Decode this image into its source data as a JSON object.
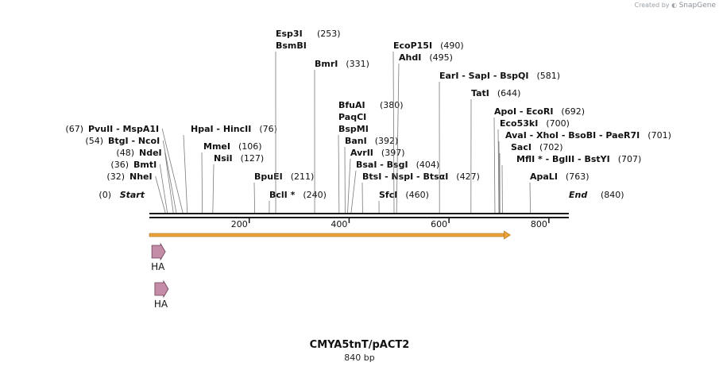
{
  "brand": {
    "prefix": "Created by",
    "name": "SnapGene"
  },
  "map": {
    "name": "CMYA5tnT/pACT2",
    "length_text": "840 bp",
    "total_bp": 840,
    "start_label": "Start",
    "start_pos": "(0)",
    "end_label": "End",
    "end_pos": "(840)"
  },
  "ticks": [
    {
      "bp": 200,
      "label": "200"
    },
    {
      "bp": 400,
      "label": "400"
    },
    {
      "bp": 600,
      "label": "600"
    },
    {
      "bp": 800,
      "label": "800"
    }
  ],
  "sites": [
    {
      "names": [
        "NheI"
      ],
      "pos": "(32)",
      "bp": 32,
      "side": "left"
    },
    {
      "names": [
        "BmtI"
      ],
      "pos": "(36)",
      "bp": 36,
      "side": "left"
    },
    {
      "names": [
        "NdeI"
      ],
      "pos": "(48)",
      "bp": 48,
      "side": "left"
    },
    {
      "names": [
        "BtgI",
        "NcoI"
      ],
      "pos": "(54)",
      "bp": 54,
      "side": "left"
    },
    {
      "names": [
        "PvuII",
        "MspA1I"
      ],
      "pos": "(67)",
      "bp": 67,
      "side": "left"
    },
    {
      "names": [
        "HpaI",
        "HincII"
      ],
      "pos": "(76)",
      "bp": 76,
      "side": "right"
    },
    {
      "names": [
        "MmeI"
      ],
      "pos": "(106)",
      "bp": 106,
      "side": "right"
    },
    {
      "names": [
        "NsiI"
      ],
      "pos": "(127)",
      "bp": 127,
      "side": "right"
    },
    {
      "names": [
        "BpuEI"
      ],
      "pos": "(211)",
      "bp": 211,
      "side": "right"
    },
    {
      "names": [
        "BclI *"
      ],
      "pos": "(240)",
      "bp": 240,
      "side": "right"
    },
    {
      "names": [
        "Esp3I",
        "BsmBI"
      ],
      "pos": "(253)",
      "bp": 253,
      "side": "right",
      "stacked": true
    },
    {
      "names": [
        "BmrI"
      ],
      "pos": "(331)",
      "bp": 331,
      "side": "right"
    },
    {
      "names": [
        "BfuAI",
        "PaqCI",
        "BspMI"
      ],
      "pos": "(380)",
      "bp": 380,
      "side": "right",
      "stacked": true
    },
    {
      "names": [
        "BanI"
      ],
      "pos": "(392)",
      "bp": 392,
      "side": "right"
    },
    {
      "names": [
        "AvrII"
      ],
      "pos": "(397)",
      "bp": 397,
      "side": "right"
    },
    {
      "names": [
        "BsaI",
        "BsgI"
      ],
      "pos": "(404)",
      "bp": 404,
      "side": "right"
    },
    {
      "names": [
        "BtsI",
        "NspI",
        "BtsαI"
      ],
      "pos": "(427)",
      "bp": 427,
      "side": "right"
    },
    {
      "names": [
        "SfcI"
      ],
      "pos": "(460)",
      "bp": 460,
      "side": "right"
    },
    {
      "names": [
        "EcoP15I"
      ],
      "pos": "(490)",
      "bp": 490,
      "side": "right"
    },
    {
      "names": [
        "AhdI"
      ],
      "pos": "(495)",
      "bp": 495,
      "side": "right"
    },
    {
      "names": [
        "EarI",
        "SapI",
        "BspQI"
      ],
      "pos": "(581)",
      "bp": 581,
      "side": "right"
    },
    {
      "names": [
        "TatI"
      ],
      "pos": "(644)",
      "bp": 644,
      "side": "right"
    },
    {
      "names": [
        "ApoI",
        "EcoRI"
      ],
      "pos": "(692)",
      "bp": 692,
      "side": "right"
    },
    {
      "names": [
        "Eco53kI"
      ],
      "pos": "(700)",
      "bp": 700,
      "side": "right"
    },
    {
      "names": [
        "AvaI",
        "XhoI",
        "BsoBI",
        "PaeR7I"
      ],
      "pos": "(701)",
      "bp": 701,
      "side": "right"
    },
    {
      "names": [
        "SacI"
      ],
      "pos": "(702)",
      "bp": 702,
      "side": "right"
    },
    {
      "names": [
        "MflI *",
        "BglII",
        "BstYI"
      ],
      "pos": "(707)",
      "bp": 707,
      "side": "right"
    },
    {
      "names": [
        "ApaLI"
      ],
      "pos": "(763)",
      "bp": 763,
      "side": "right"
    }
  ],
  "features": [
    {
      "name": "ORF",
      "type": "orf",
      "start_bp": 0,
      "end_bp": 723,
      "label": ""
    },
    {
      "name": "HA",
      "type": "tag",
      "start_bp": 5,
      "end_bp": 32,
      "label": "HA"
    },
    {
      "name": "HA",
      "type": "tag",
      "start_bp": 11,
      "end_bp": 38,
      "label": "HA"
    }
  ],
  "colors": {
    "backbone": "#1a1a1a",
    "leader": "#7a7a7a",
    "orf_fill": "#e8a33a",
    "orf_edge": "#b36b12",
    "tag_fill": "#c58ca8",
    "tag_edge": "#6b3f57"
  }
}
